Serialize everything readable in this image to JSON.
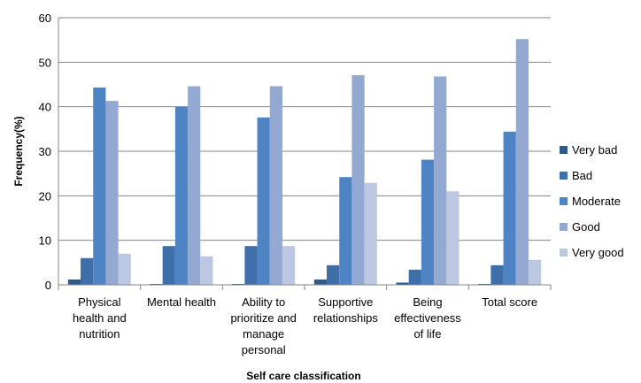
{
  "chart_data": {
    "type": "bar",
    "title": "",
    "xlabel": "Self care classification",
    "ylabel": "Frequency(%)",
    "ylim": [
      0,
      60
    ],
    "yticks": [
      "0",
      "10",
      "20",
      "30",
      "40",
      "50",
      "60"
    ],
    "grid": "horizontal",
    "legend_position": "right",
    "categories": [
      [
        "Physical",
        "health and",
        "nutrition"
      ],
      [
        "Mental health"
      ],
      [
        "Ability to",
        "prioritize and",
        "manage",
        "personal"
      ],
      [
        "Supportive",
        "relationships"
      ],
      [
        "Being",
        "effectiveness",
        "of life"
      ],
      [
        "Total score"
      ]
    ],
    "series": [
      {
        "name": "Very bad",
        "color": "#2E5A8C",
        "values": [
          1.2,
          0.2,
          0.2,
          1.2,
          0.5,
          0.2
        ]
      },
      {
        "name": "Bad",
        "color": "#3F6FA8",
        "values": [
          6.0,
          8.7,
          8.7,
          4.4,
          3.4,
          4.4
        ]
      },
      {
        "name": "Moderate",
        "color": "#4F84C4",
        "values": [
          44.3,
          40.0,
          37.6,
          24.2,
          28.1,
          34.4
        ]
      },
      {
        "name": "Good",
        "color": "#94A9D2",
        "values": [
          41.3,
          44.6,
          44.6,
          47.1,
          46.8,
          55.2
        ]
      },
      {
        "name": "Very good",
        "color": "#BCC8E2",
        "values": [
          7.0,
          6.4,
          8.7,
          22.9,
          21.0,
          5.6
        ]
      }
    ]
  }
}
